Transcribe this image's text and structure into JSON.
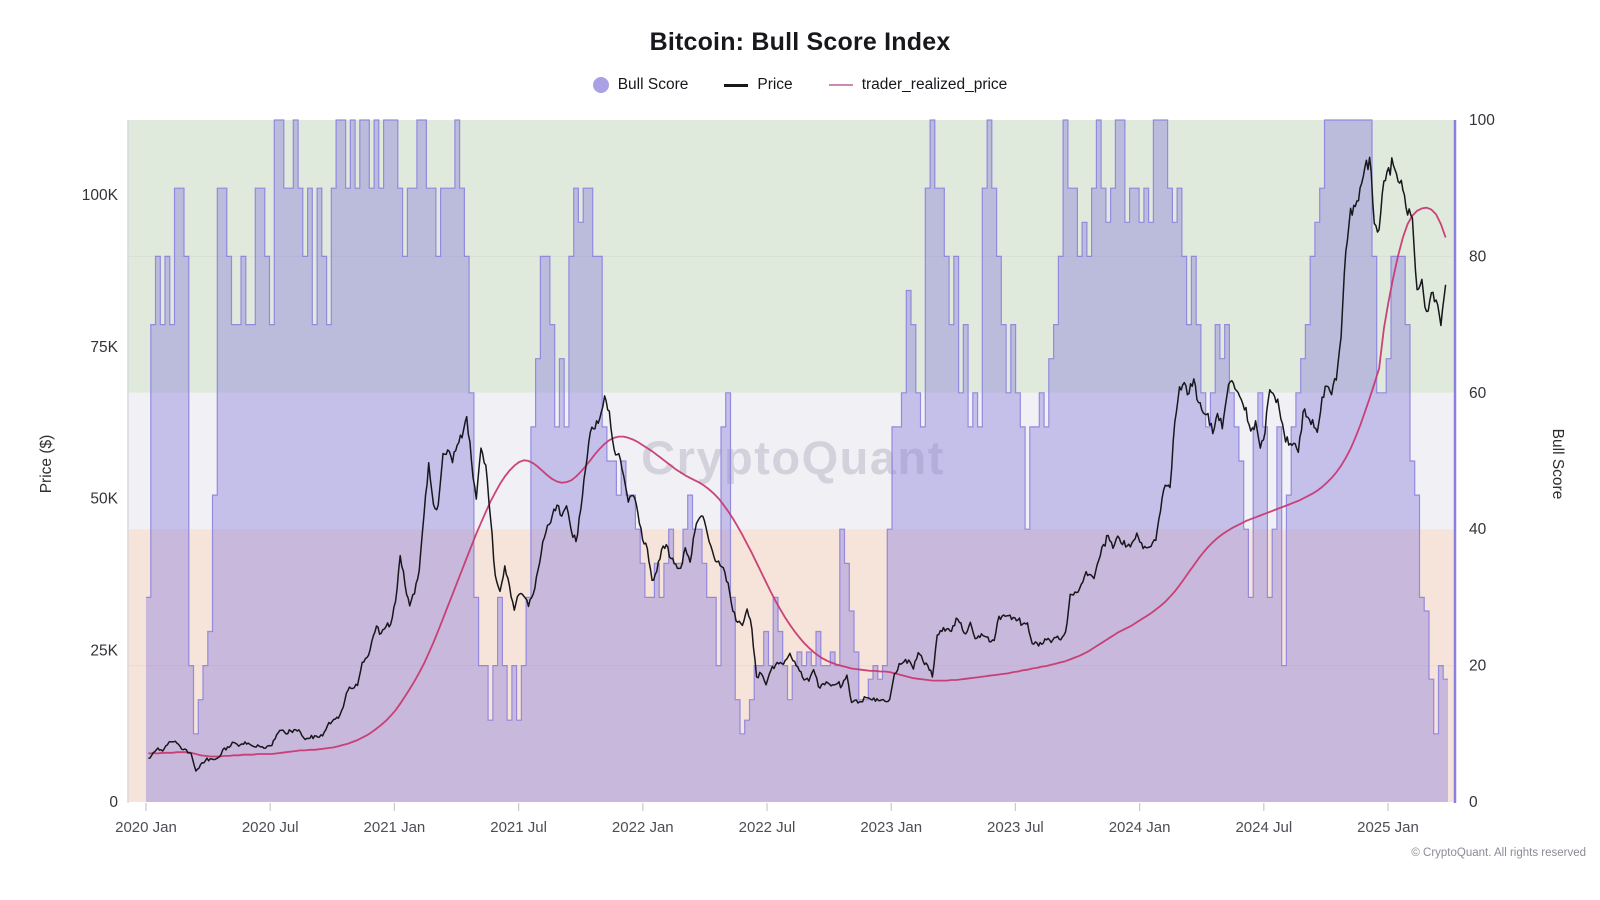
{
  "title": "Bitcoin: Bull Score Index",
  "watermark": "CryptoQuant",
  "copyright": "© CryptoQuant. All rights reserved",
  "legend": {
    "items": [
      {
        "label": "Bull Score",
        "marker": "circle"
      },
      {
        "label": "Price",
        "marker": "line"
      },
      {
        "label": "trader_realized_price",
        "marker": "line"
      }
    ]
  },
  "axes": {
    "left": {
      "title": "Price ($)",
      "ticks": [
        {
          "label": "100K",
          "value": 100
        },
        {
          "label": "75K",
          "value": 75
        },
        {
          "label": "50K",
          "value": 50
        },
        {
          "label": "25K",
          "value": 25
        },
        {
          "label": "0",
          "value": 0
        }
      ]
    },
    "right": {
      "title": "Bull Score",
      "ticks": [
        {
          "label": "100",
          "value": 100
        },
        {
          "label": "80",
          "value": 80
        },
        {
          "label": "60",
          "value": 60
        },
        {
          "label": "40",
          "value": 40
        },
        {
          "label": "20",
          "value": 20
        },
        {
          "label": "0",
          "value": 0
        }
      ]
    },
    "x": {
      "tick_labels": [
        "2020 Jan",
        "2020 Jul",
        "2021 Jan",
        "2021 Jul",
        "2022 Jan",
        "2022 Jul",
        "2023 Jan",
        "2023 Jul",
        "2024 Jan",
        "2024 Jul",
        "2025 Jan"
      ]
    }
  },
  "colors": {
    "band_bull": "#dfe9dc",
    "band_neutral": "#f1f0f4",
    "band_bear": "#f6e3da",
    "bull_fill": "rgba(133,121,221,0.40)",
    "bull_stroke": "#8c82de",
    "price_line": "#17171c",
    "trp_line": "#c73a72",
    "trp_legend": "#c98cb0",
    "legend_dot": "#aaa0e6",
    "right_axis_line": "#8b80e0",
    "left_axis_line": "#d9d9de",
    "tick_mark": "#c9c9ce",
    "tick_text": "#33333a",
    "x_tick_text": "#4d4d55",
    "gridline": "rgba(60,60,90,0.05)",
    "watermark": "#8f8fa6"
  },
  "chart_data": {
    "type": "mixed",
    "title": "Bitcoin: Bull Score Index",
    "x_start": "2020-01",
    "x_interval": "weekly",
    "x_end_approx": "2025-04",
    "price_axis_range_k": [
      0,
      112
    ],
    "score_axis_range": [
      0,
      100
    ],
    "bands": [
      {
        "name": "bull zone",
        "from": 60,
        "to": 100
      },
      {
        "name": "neutral zone",
        "from": 40,
        "to": 60
      },
      {
        "name": "bear zone",
        "from": 0,
        "to": 40
      }
    ],
    "series": [
      {
        "name": "Bull Score",
        "type": "step-area",
        "axis": "score",
        "values": [
          30,
          70,
          80,
          70,
          80,
          70,
          90,
          90,
          80,
          20,
          10,
          15,
          20,
          25,
          45,
          90,
          90,
          80,
          70,
          70,
          80,
          70,
          70,
          90,
          90,
          80,
          70,
          100,
          100,
          90,
          90,
          100,
          90,
          80,
          90,
          70,
          90,
          80,
          70,
          90,
          100,
          100,
          90,
          100,
          90,
          100,
          100,
          90,
          100,
          90,
          100,
          100,
          100,
          90,
          80,
          90,
          90,
          100,
          100,
          90,
          90,
          80,
          90,
          90,
          90,
          100,
          90,
          80,
          60,
          30,
          20,
          20,
          12,
          20,
          30,
          20,
          12,
          20,
          12,
          20,
          30,
          55,
          65,
          80,
          80,
          70,
          55,
          65,
          55,
          80,
          90,
          85,
          90,
          90,
          80,
          80,
          55,
          50,
          50,
          45,
          50,
          45,
          45,
          40,
          35,
          30,
          30,
          35,
          30,
          35,
          40,
          35,
          35,
          40,
          45,
          40,
          40,
          35,
          30,
          30,
          20,
          55,
          60,
          30,
          15,
          10,
          12,
          15,
          20,
          20,
          25,
          20,
          30,
          25,
          20,
          15,
          20,
          22,
          20,
          22,
          20,
          25,
          20,
          20,
          22,
          20,
          40,
          35,
          28,
          22,
          15,
          15,
          18,
          20,
          18,
          20,
          40,
          55,
          55,
          60,
          75,
          70,
          60,
          55,
          90,
          100,
          90,
          90,
          80,
          70,
          80,
          60,
          70,
          55,
          60,
          55,
          90,
          100,
          90,
          80,
          70,
          60,
          70,
          60,
          55,
          40,
          55,
          55,
          60,
          55,
          65,
          70,
          80,
          100,
          90,
          90,
          80,
          85,
          80,
          90,
          100,
          90,
          85,
          90,
          100,
          100,
          85,
          90,
          90,
          85,
          90,
          85,
          100,
          100,
          100,
          90,
          85,
          90,
          80,
          70,
          80,
          70,
          60,
          55,
          60,
          70,
          65,
          70,
          60,
          55,
          50,
          40,
          30,
          55,
          60,
          55,
          30,
          40,
          55,
          20,
          45,
          55,
          60,
          65,
          70,
          80,
          85,
          90,
          100,
          100,
          100,
          100,
          100,
          100,
          100,
          100,
          100,
          100,
          80,
          60,
          60,
          65,
          80,
          80,
          80,
          70,
          50,
          45,
          30,
          28,
          18,
          10,
          20,
          18
        ]
      },
      {
        "name": "Price",
        "type": "line",
        "axis": "price",
        "unit": "USD thousands",
        "values": [
          7.2,
          8.1,
          8.9,
          8.4,
          9.4,
          9.9,
          9.7,
          8.7,
          8.6,
          8.0,
          5.1,
          6.2,
          6.8,
          7.1,
          7.0,
          7.5,
          8.9,
          9.0,
          9.8,
          9.2,
          9.5,
          9.7,
          9.2,
          9.4,
          9.1,
          9.2,
          9.3,
          11.1,
          11.8,
          11.2,
          11.7,
          11.9,
          11.5,
          10.3,
          10.5,
          10.9,
          10.7,
          11.5,
          13.1,
          13.6,
          13.8,
          15.6,
          18.4,
          18.7,
          19.2,
          23.0,
          23.8,
          26.4,
          29.0,
          27.8,
          28.9,
          29.3,
          33.0,
          40.6,
          35.8,
          32.3,
          34.3,
          38.1,
          47.3,
          55.9,
          49.0,
          48.9,
          57.4,
          58.0,
          55.9,
          58.8,
          60.0,
          63.5,
          56.2,
          49.9,
          58.3,
          55.5,
          46.8,
          37.3,
          34.7,
          38.9,
          35.6,
          31.6,
          34.2,
          33.9,
          32.2,
          34.3,
          38.2,
          42.9,
          45.6,
          47.2,
          48.9,
          47.1,
          48.8,
          44.7,
          42.9,
          48.2,
          54.8,
          60.9,
          61.5,
          63.2,
          66.9,
          64.4,
          58.1,
          57.4,
          53.8,
          49.4,
          50.5,
          47.7,
          43.2,
          41.8,
          36.5,
          38.0,
          41.6,
          42.4,
          40.1,
          39.2,
          38.5,
          41.9,
          39.5,
          44.5,
          46.8,
          46.4,
          42.9,
          40.5,
          39.7,
          38.6,
          36.1,
          31.4,
          29.6,
          29.1,
          31.8,
          28.5,
          20.6,
          21.1,
          19.3,
          21.7,
          22.6,
          23.0,
          23.3,
          24.5,
          23.2,
          21.6,
          20.1,
          19.9,
          21.8,
          19.0,
          19.5,
          19.6,
          19.3,
          19.5,
          19.2,
          20.9,
          16.4,
          16.8,
          16.5,
          17.2,
          16.9,
          16.6,
          16.7,
          16.6,
          16.9,
          21.1,
          22.8,
          23.1,
          23.4,
          21.9,
          24.6,
          23.3,
          22.5,
          20.6,
          27.5,
          28.1,
          28.5,
          28.1,
          30.3,
          29.5,
          27.7,
          29.6,
          26.9,
          27.1,
          27.3,
          26.4,
          26.6,
          30.6,
          30.8,
          30.7,
          30.4,
          30.0,
          29.3,
          29.5,
          26.1,
          26.2,
          26.0,
          26.7,
          26.3,
          27.1,
          26.7,
          28.0,
          34.2,
          34.6,
          35.2,
          37.2,
          37.5,
          36.8,
          39.8,
          42.4,
          43.9,
          41.8,
          43.8,
          42.4,
          42.2,
          42.7,
          44.3,
          42.7,
          41.9,
          42.1,
          43.1,
          47.9,
          52.2,
          51.8,
          62.6,
          68.4,
          69.1,
          67.3,
          69.7,
          65.8,
          64.1,
          64.0,
          60.7,
          64.0,
          61.5,
          67.0,
          69.4,
          67.8,
          66.3,
          65.0,
          61.1,
          62.8,
          58.3,
          60.9,
          67.9,
          66.8,
          64.7,
          60.8,
          58.8,
          59.1,
          57.6,
          64.3,
          63.4,
          63.0,
          60.9,
          66.7,
          68.5,
          67.1,
          69.5,
          76.6,
          90.7,
          97.8,
          98.1,
          101.2,
          104.5,
          106.2,
          95.3,
          94.3,
          102.3,
          104.5,
          104.9,
          102.2,
          100.8,
          96.7,
          96.2,
          84.4,
          86.1,
          80.8,
          83.9,
          82.7,
          78.5,
          85.2
        ]
      },
      {
        "name": "trader_realized_price",
        "type": "line",
        "axis": "price",
        "unit": "USD thousands",
        "values": [
          8.0,
          8.0,
          8.0,
          8.1,
          8.1,
          8.1,
          8.2,
          8.2,
          8.2,
          8.1,
          7.9,
          7.7,
          7.6,
          7.5,
          7.5,
          7.5,
          7.6,
          7.6,
          7.7,
          7.7,
          7.8,
          7.8,
          7.8,
          7.9,
          7.9,
          7.9,
          7.9,
          8.0,
          8.1,
          8.2,
          8.3,
          8.4,
          8.5,
          8.5,
          8.6,
          8.6,
          8.7,
          8.8,
          8.9,
          9.0,
          9.2,
          9.4,
          9.6,
          9.9,
          10.2,
          10.6,
          11.0,
          11.5,
          12.1,
          12.7,
          13.4,
          14.2,
          15.1,
          16.2,
          17.4,
          18.6,
          19.9,
          21.3,
          22.8,
          24.5,
          26.3,
          28.2,
          30.2,
          32.2,
          34.2,
          36.2,
          38.2,
          40.2,
          42.2,
          44.2,
          46.0,
          47.8,
          49.5,
          51.0,
          52.4,
          53.6,
          54.6,
          55.4,
          56.0,
          56.3,
          56.2,
          55.8,
          55.2,
          54.5,
          53.8,
          53.2,
          52.8,
          52.6,
          52.7,
          53.0,
          53.6,
          54.4,
          55.3,
          56.3,
          57.3,
          58.2,
          59.0,
          59.6,
          60.0,
          60.2,
          60.2,
          60.0,
          59.7,
          59.3,
          58.8,
          58.3,
          57.8,
          57.2,
          56.6,
          56.0,
          55.4,
          54.8,
          54.3,
          53.8,
          53.4,
          53.0,
          52.6,
          52.1,
          51.5,
          50.8,
          50.0,
          49.0,
          47.9,
          46.7,
          45.4,
          44.0,
          42.5,
          41.0,
          39.4,
          37.8,
          36.2,
          34.6,
          33.1,
          31.7,
          30.4,
          29.2,
          28.1,
          27.1,
          26.2,
          25.4,
          24.7,
          24.1,
          23.6,
          23.2,
          22.9,
          22.6,
          22.4,
          22.2,
          22.0,
          21.9,
          21.8,
          21.7,
          21.6,
          21.6,
          21.5,
          21.5,
          21.4,
          21.2,
          21.0,
          20.8,
          20.6,
          20.4,
          20.3,
          20.2,
          20.1,
          20.0,
          20.0,
          20.0,
          20.0,
          20.1,
          20.1,
          20.2,
          20.3,
          20.4,
          20.5,
          20.6,
          20.7,
          20.8,
          20.9,
          21.0,
          21.1,
          21.2,
          21.4,
          21.5,
          21.7,
          21.8,
          22.0,
          22.1,
          22.3,
          22.4,
          22.6,
          22.8,
          23.0,
          23.2,
          23.5,
          23.8,
          24.1,
          24.5,
          24.9,
          25.4,
          25.9,
          26.4,
          26.9,
          27.4,
          27.9,
          28.3,
          28.7,
          29.1,
          29.6,
          30.1,
          30.6,
          31.1,
          31.7,
          32.3,
          33.0,
          33.8,
          34.7,
          35.7,
          36.8,
          37.9,
          39.0,
          40.1,
          41.1,
          42.0,
          42.8,
          43.5,
          44.1,
          44.6,
          45.1,
          45.5,
          45.9,
          46.3,
          46.6,
          46.9,
          47.2,
          47.5,
          47.8,
          48.1,
          48.4,
          48.7,
          49.0,
          49.3,
          49.6,
          50.0,
          50.4,
          50.8,
          51.3,
          51.9,
          52.6,
          53.4,
          54.3,
          55.4,
          56.7,
          58.2,
          60.0,
          62.0,
          64.2,
          66.5,
          68.9,
          71.4,
          78.0,
          82.5,
          86.5,
          90.0,
          93.0,
          95.2,
          96.6,
          97.4,
          97.8,
          97.9,
          97.6,
          96.8,
          95.2,
          93.0
        ]
      }
    ]
  }
}
